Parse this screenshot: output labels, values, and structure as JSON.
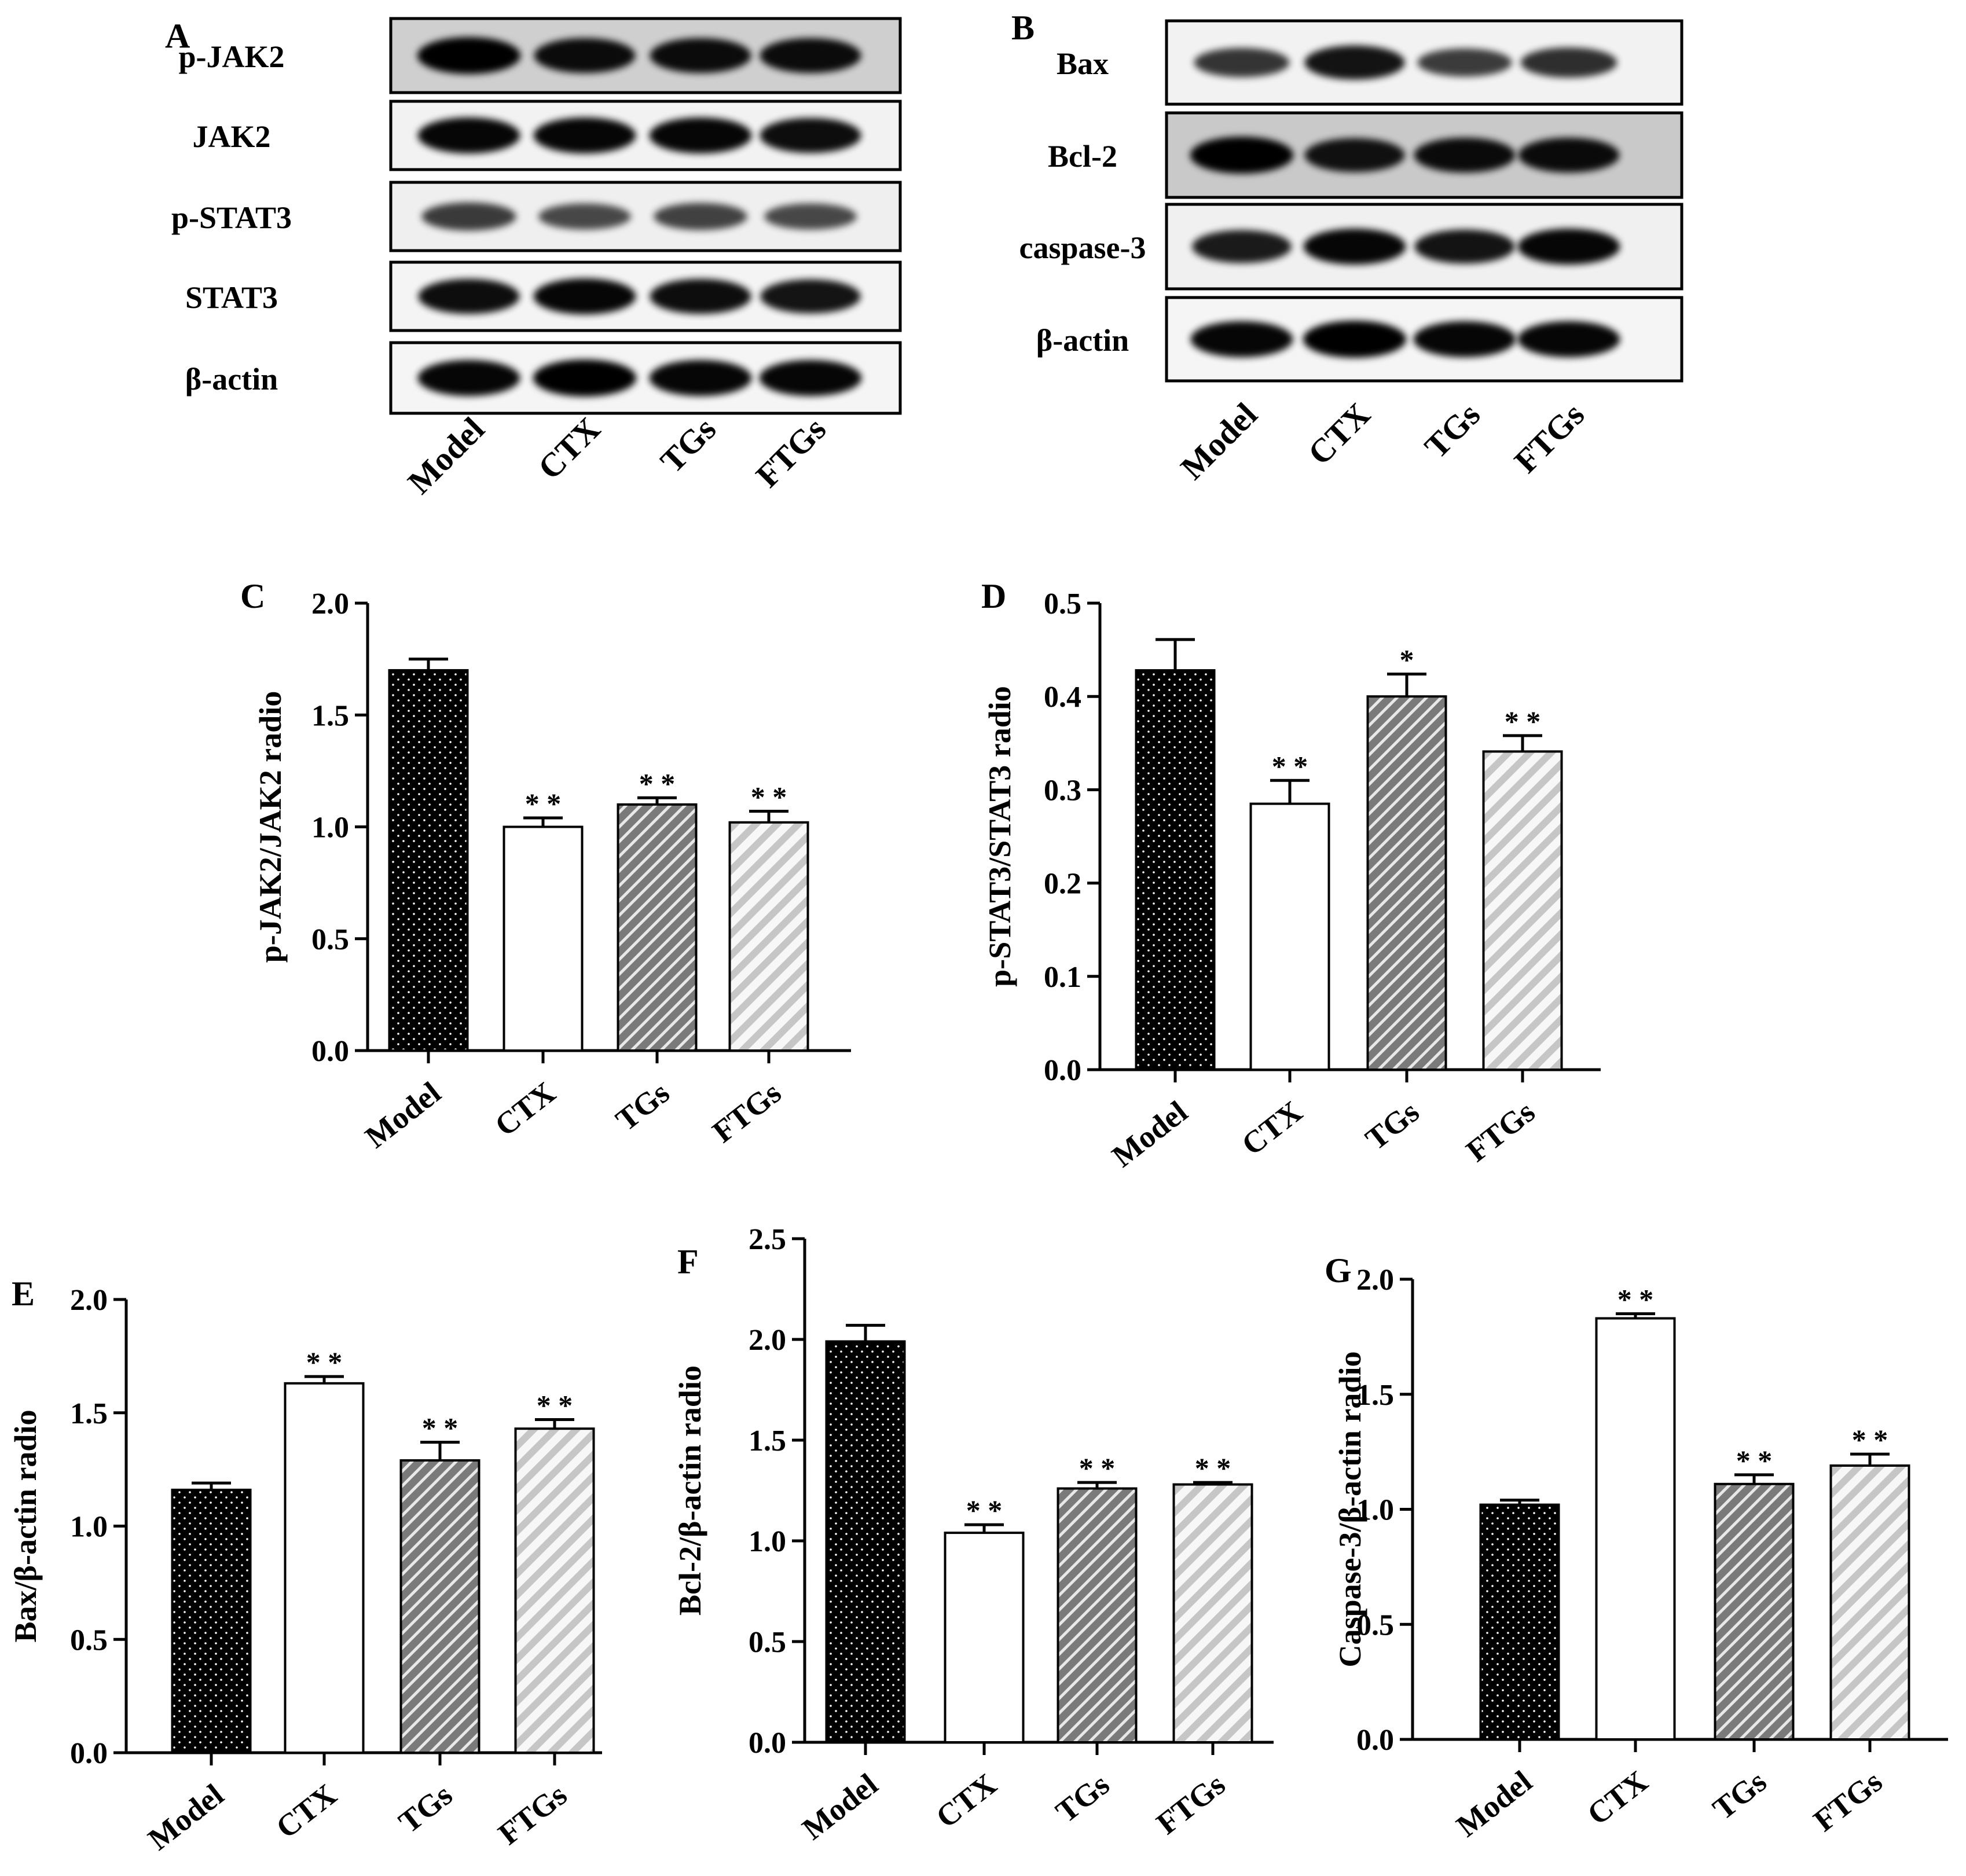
{
  "blot_a": {
    "panel_label": "A",
    "rows": [
      {
        "label": "p-JAK2",
        "bg": "#cfcfcf",
        "bands": [
          1.0,
          0.9,
          0.9,
          0.9
        ]
      },
      {
        "label": "JAK2",
        "bg": "#f2f2f2",
        "bands": [
          0.95,
          0.95,
          0.95,
          0.9
        ]
      },
      {
        "label": "p-STAT3",
        "bg": "#efefef",
        "bands": [
          0.55,
          0.45,
          0.5,
          0.45
        ]
      },
      {
        "label": "STAT3",
        "bg": "#f4f4f4",
        "bands": [
          0.9,
          0.95,
          0.9,
          0.85
        ]
      },
      {
        "label": "β-actin",
        "bg": "#f5f5f5",
        "bands": [
          0.95,
          1.0,
          0.95,
          0.95
        ]
      }
    ],
    "lanes": [
      "Model",
      "CTX",
      "TGs",
      "FTGs"
    ]
  },
  "blot_b": {
    "panel_label": "B",
    "rows": [
      {
        "label": "Bax",
        "bg": "#f2f2f2",
        "bands": [
          0.6,
          0.85,
          0.55,
          0.65
        ]
      },
      {
        "label": "Bcl-2",
        "bg": "#c9c9c9",
        "bands": [
          1.0,
          0.85,
          0.9,
          0.9
        ]
      },
      {
        "label": "caspase-3",
        "bg": "#f0f0f0",
        "bands": [
          0.8,
          0.95,
          0.85,
          0.95
        ]
      },
      {
        "label": "β-actin",
        "bg": "#f5f5f5",
        "bands": [
          0.95,
          1.0,
          0.95,
          0.95
        ]
      }
    ],
    "lanes": [
      "Model",
      "CTX",
      "TGs",
      "FTGs"
    ]
  },
  "chart_data": [
    {
      "type": "bar",
      "panel_label": "C",
      "categories": [
        "Model",
        "CTX",
        "TGs",
        "FTGs"
      ],
      "values": [
        1.7,
        1.0,
        1.1,
        1.02
      ],
      "errors": [
        0.05,
        0.04,
        0.03,
        0.05
      ],
      "significance": [
        "",
        "**",
        "**",
        "**"
      ],
      "ylabel": "p-JAK2/JAK2 radio",
      "ylim": [
        0,
        2.0
      ],
      "ytick_labels": [
        "0.0",
        "0.5",
        "1.0",
        "1.5",
        "2.0"
      ],
      "grid": false
    },
    {
      "type": "bar",
      "panel_label": "D",
      "categories": [
        "Model",
        "CTX",
        "TGs",
        "FTGs"
      ],
      "values": [
        0.428,
        0.285,
        0.4,
        0.341
      ],
      "errors": [
        0.033,
        0.025,
        0.024,
        0.017
      ],
      "significance": [
        "",
        "**",
        "*",
        "**"
      ],
      "ylabel": "p-STAT3/STAT3 radio",
      "ylim": [
        0,
        0.5
      ],
      "ytick_labels": [
        "0.0",
        "0.1",
        "0.2",
        "0.3",
        "0.4",
        "0.5"
      ],
      "grid": false
    },
    {
      "type": "bar",
      "panel_label": "E",
      "categories": [
        "Model",
        "CTX",
        "TGs",
        "FTGs"
      ],
      "values": [
        1.16,
        1.63,
        1.29,
        1.43
      ],
      "errors": [
        0.03,
        0.03,
        0.08,
        0.04
      ],
      "significance": [
        "",
        "**",
        "**",
        "**"
      ],
      "ylabel": "Bax/β-actin radio",
      "ylim": [
        0,
        2.0
      ],
      "ytick_labels": [
        "0.0",
        "0.5",
        "1.0",
        "1.5",
        "2.0"
      ],
      "grid": false
    },
    {
      "type": "bar",
      "panel_label": "F",
      "categories": [
        "Model",
        "CTX",
        "TGs",
        "FTGs"
      ],
      "values": [
        1.99,
        1.04,
        1.26,
        1.28
      ],
      "errors": [
        0.08,
        0.04,
        0.03,
        0.01
      ],
      "significance": [
        "",
        "**",
        "**",
        "**"
      ],
      "ylabel": "Bcl-2/β-actin radio",
      "ylim": [
        0,
        2.5
      ],
      "ytick_labels": [
        "0.0",
        "0.5",
        "1.0",
        "1.5",
        "2.0",
        "2.5"
      ],
      "grid": false
    },
    {
      "type": "bar",
      "panel_label": "G",
      "categories": [
        "Model",
        "CTX",
        "TGs",
        "FTGs"
      ],
      "values": [
        1.02,
        1.83,
        1.11,
        1.19
      ],
      "errors": [
        0.02,
        0.02,
        0.04,
        0.05
      ],
      "significance": [
        "",
        "**",
        "**",
        "**"
      ],
      "ylabel": "Caspase-3/β-actin radio",
      "ylim": [
        0,
        2.0
      ],
      "ytick_labels": [
        "0.0",
        "0.5",
        "1.0",
        "1.5",
        "2.0"
      ],
      "grid": false
    }
  ],
  "styles": {
    "fills": [
      "dots-dark",
      "white",
      "hatch-dark",
      "hatch-light"
    ],
    "colors": {
      "model": "#000000",
      "ctx": "#ffffff",
      "tgs": "#7a7a7a",
      "ftgs": "#cfcfcf",
      "axis": "#000000"
    }
  }
}
